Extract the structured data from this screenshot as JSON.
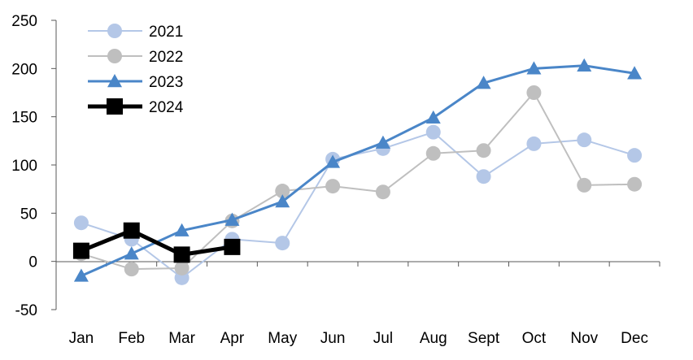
{
  "chart_data": {
    "type": "line",
    "title": "",
    "xlabel": "",
    "ylabel": "",
    "categories": [
      "Jan",
      "Feb",
      "Mar",
      "Apr",
      "May",
      "Jun",
      "Jul",
      "Aug",
      "Sept",
      "Oct",
      "Nov",
      "Dec"
    ],
    "ylim": [
      -50,
      250
    ],
    "yticks": [
      "-50",
      "0",
      "50",
      "100",
      "150",
      "200",
      "250"
    ],
    "grid": false,
    "legend_position": "top-left",
    "series": [
      {
        "name": "2021",
        "color": "#b4c7e7",
        "marker": "circle",
        "values": [
          40,
          23,
          -17,
          23,
          19,
          106,
          117,
          134,
          88,
          122,
          126,
          110
        ]
      },
      {
        "name": "2022",
        "color": "#bfbfbf",
        "marker": "circle",
        "values": [
          8,
          -8,
          -7,
          42,
          73,
          78,
          72,
          112,
          115,
          175,
          79,
          80
        ]
      },
      {
        "name": "2023",
        "color": "#4a86c8",
        "marker": "triangle",
        "values": [
          -15,
          8,
          32,
          43,
          62,
          103,
          123,
          149,
          185,
          200,
          203,
          195
        ]
      },
      {
        "name": "2024",
        "color": "#000000",
        "marker": "square",
        "values": [
          11,
          32,
          7,
          15,
          null,
          null,
          null,
          null,
          null,
          null,
          null,
          null
        ]
      }
    ]
  }
}
